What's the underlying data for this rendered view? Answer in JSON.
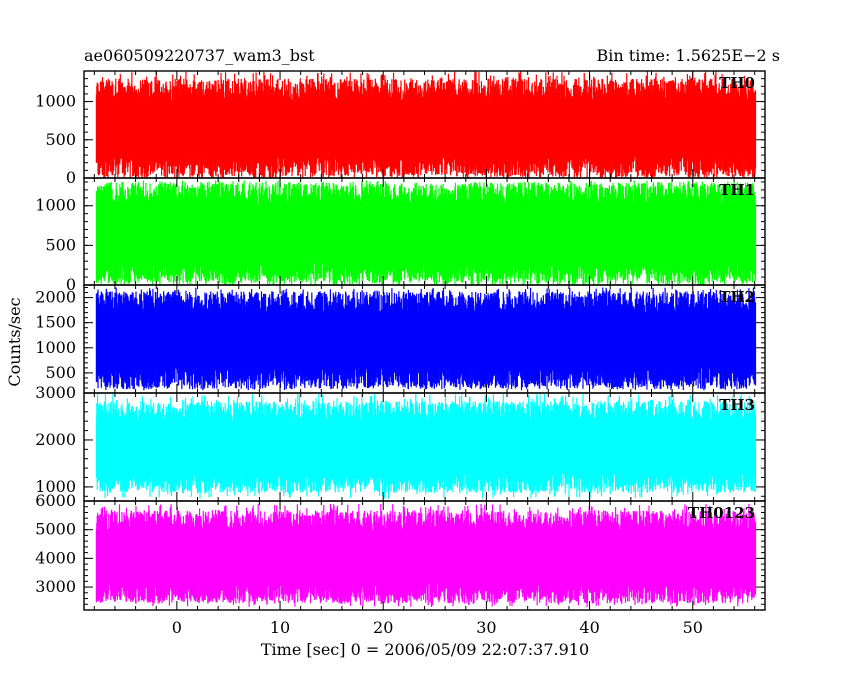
{
  "chart_data": {
    "type": "line",
    "title_left": "ae060509220737_wam3_bst",
    "title_right": "Bin time: 1.5625E−2 s",
    "xlabel": "Time [sec] 0 = 2006/05/09 22:07:37.910",
    "ylabel": "Counts/sec",
    "xlim": [
      -9,
      57
    ],
    "data_x_range": [
      -7.8,
      56.1
    ],
    "x_ticks": [
      0,
      10,
      20,
      30,
      40,
      50
    ],
    "grid": false,
    "panels": [
      {
        "name": "TH0",
        "color": "#ff0000",
        "ylim": [
          0,
          1400
        ],
        "y_ticks": [
          0,
          500,
          1000
        ],
        "mean": 650,
        "typical_range": [
          150,
          1150
        ],
        "extremes": [
          0,
          1400
        ]
      },
      {
        "name": "TH1",
        "color": "#00ff00",
        "ylim": [
          0,
          1350
        ],
        "y_ticks": [
          0,
          500,
          1000
        ],
        "mean": 650,
        "typical_range": [
          150,
          1150
        ],
        "extremes": [
          50,
          1320
        ]
      },
      {
        "name": "TH2",
        "color": "#0000ff",
        "ylim": [
          100,
          2250
        ],
        "y_ticks": [
          500,
          1000,
          1500,
          2000
        ],
        "mean": 1150,
        "typical_range": [
          400,
          1900
        ],
        "extremes": [
          150,
          2200
        ]
      },
      {
        "name": "TH3",
        "color": "#00ffff",
        "ylim": [
          700,
          3000
        ],
        "y_ticks": [
          1000,
          2000,
          3000
        ],
        "mean": 1800,
        "typical_range": [
          1100,
          2600
        ],
        "extremes": [
          750,
          3000
        ]
      },
      {
        "name": "TH0123",
        "color": "#ff00ff",
        "ylim": [
          2200,
          6000
        ],
        "y_ticks": [
          3000,
          4000,
          5000,
          6000
        ],
        "mean": 4000,
        "typical_range": [
          2800,
          5300
        ],
        "extremes": [
          2300,
          5900
        ]
      }
    ]
  }
}
